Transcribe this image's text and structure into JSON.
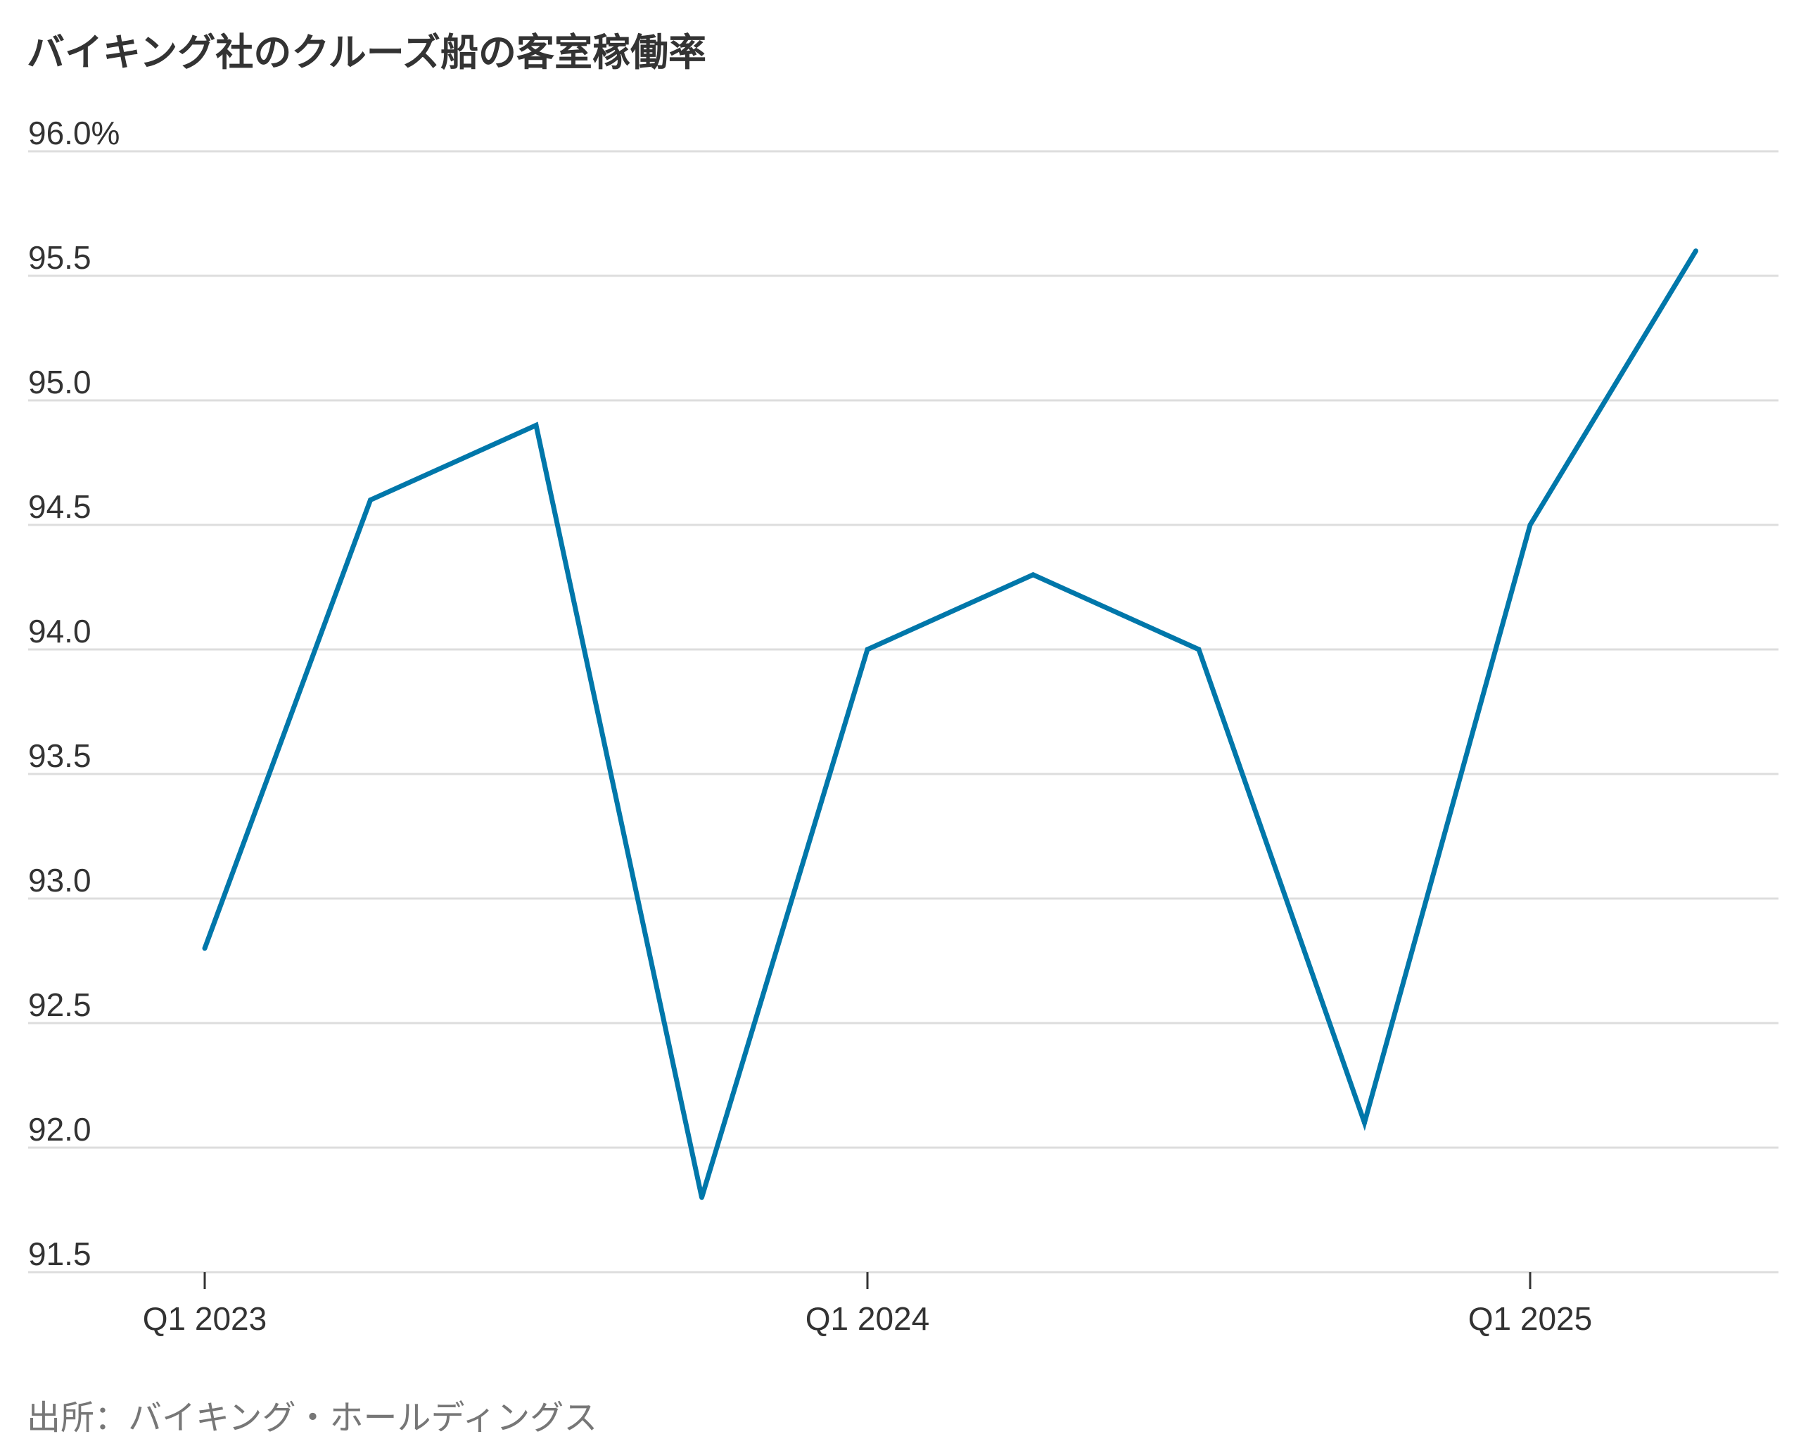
{
  "chart_data": {
    "type": "line",
    "title": "バイキング社のクルーズ船の客室稼働率",
    "source": "出所：バイキング・ホールディングス",
    "xlabel": "",
    "ylabel": "",
    "x_tick_labels": [
      "Q1 2023",
      "Q1 2024",
      "Q1 2025"
    ],
    "categories": [
      "Q1 2023",
      "Q2 2023",
      "Q3 2023",
      "Q4 2023",
      "Q1 2024",
      "Q2 2024",
      "Q3 2024",
      "Q4 2024",
      "Q1 2025",
      "Q2 2025"
    ],
    "series": [
      {
        "values": [
          92.8,
          94.6,
          94.9,
          91.8,
          94.0,
          94.3,
          94.0,
          92.1,
          94.5,
          95.6
        ],
        "color": "#0077aa"
      }
    ],
    "ylim": [
      91.5,
      96.0
    ],
    "y_ticks": [
      91.5,
      92.0,
      92.5,
      93.0,
      93.5,
      94.0,
      94.5,
      95.0,
      95.5,
      96.0
    ],
    "y_tick_labels": [
      "91.5",
      "92.0",
      "92.5",
      "93.0",
      "93.5",
      "94.0",
      "94.5",
      "95.0",
      "95.5",
      "96.0%"
    ],
    "grid": true,
    "legend": "none",
    "colors": {
      "line": "#0077aa",
      "grid": "#dddddd",
      "text": "#333333",
      "source_text": "#777777"
    }
  }
}
